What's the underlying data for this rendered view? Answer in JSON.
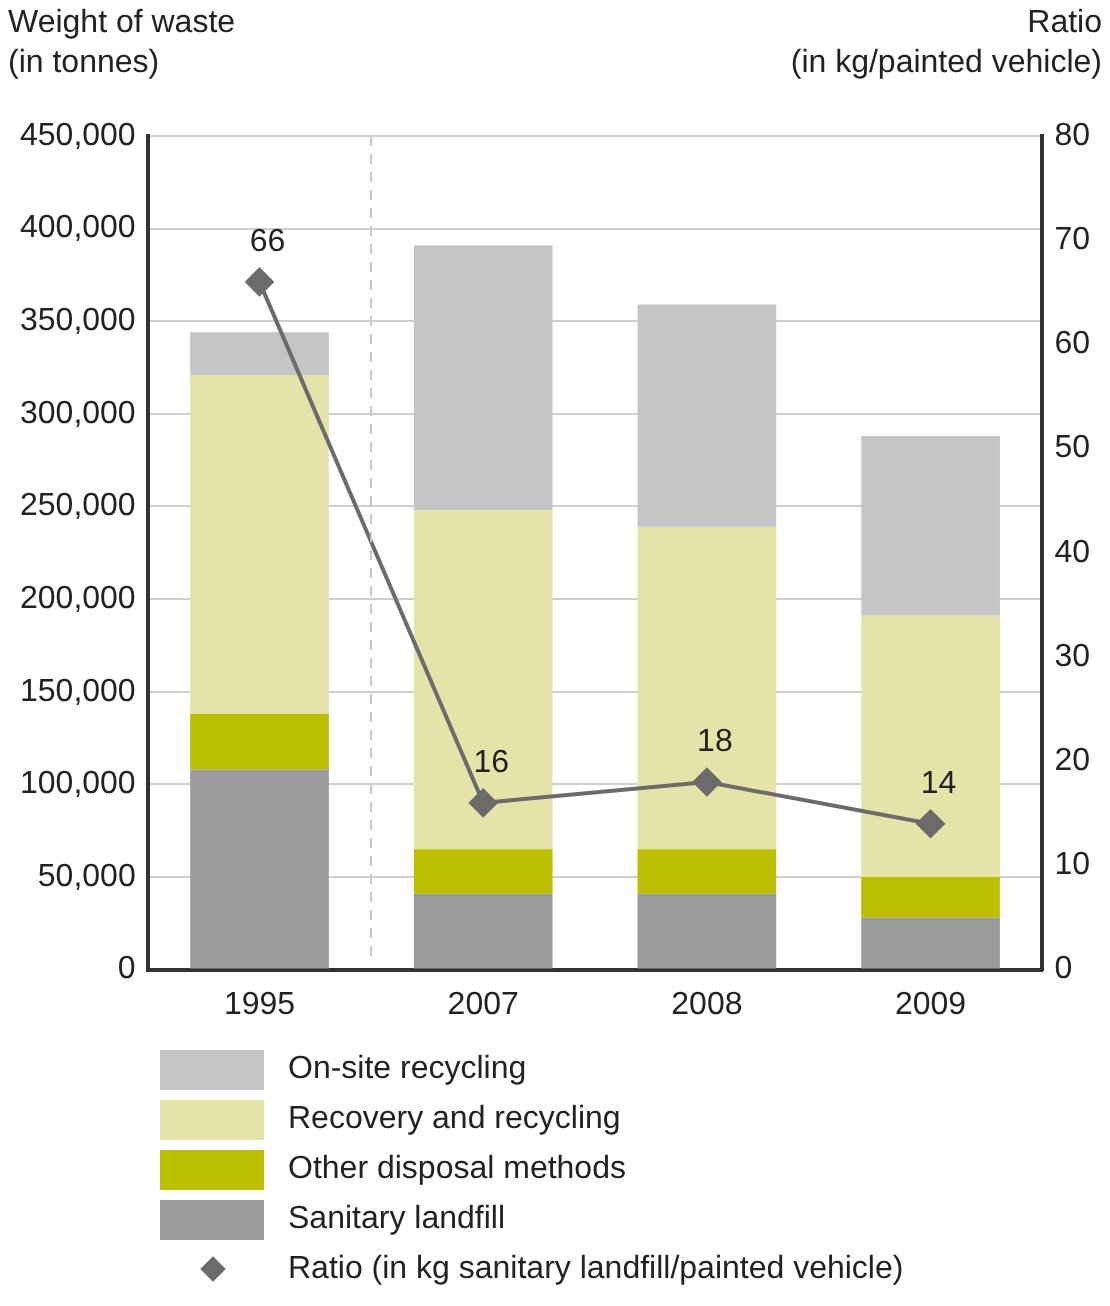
{
  "chart_data": {
    "type": "bar",
    "stacked": true,
    "ylabel": "Weight of waste\n(in tonnes)",
    "y2label": "Ratio\n(in kg/painted vehicle)",
    "categories": [
      "1995",
      "2007",
      "2008",
      "2009"
    ],
    "series": [
      {
        "name": "Sanitary landfill",
        "color": "#9a9b9d",
        "values": [
          108000,
          41000,
          41000,
          28000
        ]
      },
      {
        "name": "Other disposal methods",
        "color": "#bcbe00",
        "values": [
          30000,
          24000,
          24000,
          22000
        ]
      },
      {
        "name": "Recovery and recycling",
        "color": "#e4e4a8",
        "values": [
          183000,
          183000,
          174000,
          141000
        ]
      },
      {
        "name": "On-site recycling",
        "color": "#c4c5c7",
        "values": [
          23000,
          143000,
          120000,
          97000
        ]
      },
      {
        "name": "Ratio (in kg sanitary landfill/painted vehicle)",
        "type": "line",
        "axis": "y2",
        "color": "#6b6b6b",
        "marker": "diamond",
        "values": [
          66,
          16,
          18,
          14
        ],
        "value_labels": [
          "66",
          "16",
          "18",
          "14"
        ]
      }
    ],
    "ylim": [
      0,
      450000
    ],
    "yticks": [
      {
        "value": 0,
        "label": "0"
      },
      {
        "value": 50000,
        "label": "50,000"
      },
      {
        "value": 100000,
        "label": "100,000"
      },
      {
        "value": 150000,
        "label": "150,000"
      },
      {
        "value": 200000,
        "label": "200,000"
      },
      {
        "value": 250000,
        "label": "250,000"
      },
      {
        "value": 300000,
        "label": "300,000"
      },
      {
        "value": 350000,
        "label": "350,000"
      },
      {
        "value": 400000,
        "label": "400,000"
      },
      {
        "value": 450000,
        "label": "450,000"
      }
    ],
    "y2lim": [
      0,
      80
    ],
    "y2ticks": [
      0,
      10,
      20,
      30,
      40,
      50,
      60,
      70,
      80
    ],
    "grid": "y",
    "legend": "bottom"
  }
}
